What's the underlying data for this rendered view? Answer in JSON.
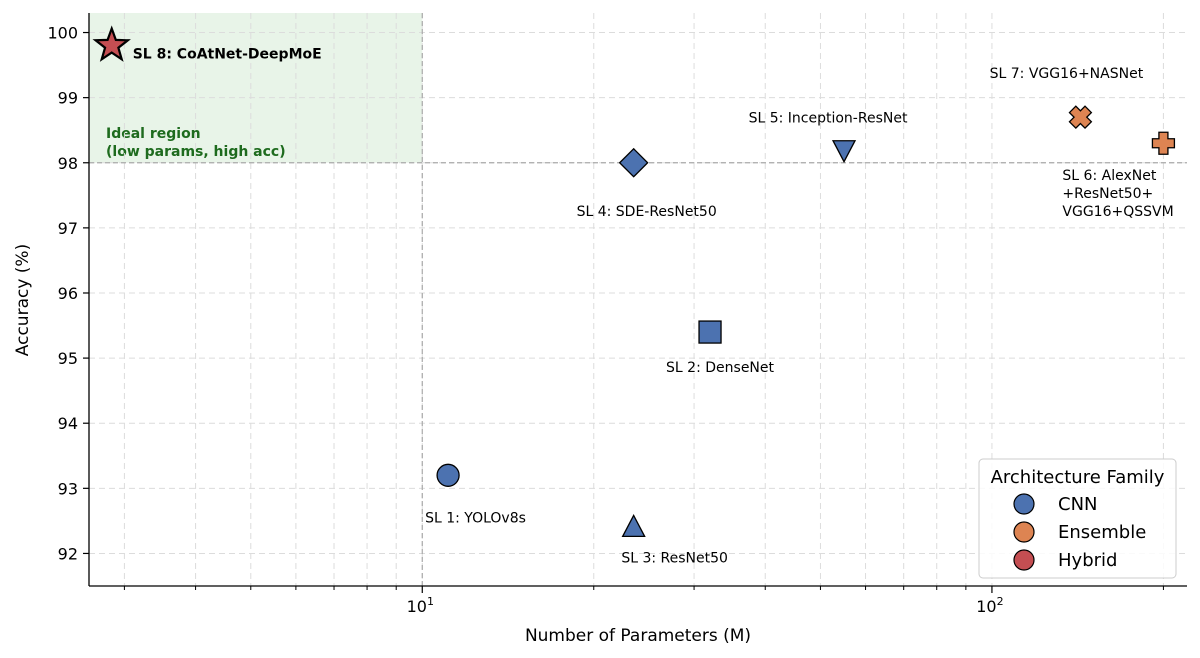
{
  "chart_data": {
    "type": "scatter",
    "title": "",
    "xlabel": "Number of Parameters (M)",
    "ylabel": "Accuracy (%)",
    "xscale": "log",
    "xlim": [
      2.6,
      220
    ],
    "ylim": [
      91.5,
      100.3
    ],
    "x_ticks": [
      {
        "value": 10,
        "base": "10",
        "exp": "1"
      },
      {
        "value": 100,
        "base": "10",
        "exp": "2"
      }
    ],
    "y_ticks": [
      92,
      93,
      94,
      95,
      96,
      97,
      98,
      99,
      100
    ],
    "y_tick_labels": [
      "92",
      "93",
      "94",
      "95",
      "96",
      "97",
      "98",
      "99",
      "100"
    ],
    "grid": true,
    "reference_lines": {
      "x": 10,
      "y": 98
    },
    "ideal_region": {
      "x_range": [
        2.6,
        10
      ],
      "y_range": [
        98,
        100.3
      ],
      "color": "#e8f4e8",
      "label_lines": [
        "Ideal region",
        "(low params, high acc)"
      ]
    },
    "family_colors": {
      "CNN": "#4c72b0",
      "Ensemble": "#dd8452",
      "Hybrid": "#c44e52"
    },
    "points": [
      {
        "label_lines": [
          "SL 1: YOLOv8s"
        ],
        "family": "CNN",
        "marker": "circle",
        "x": 11.1,
        "y": 93.2
      },
      {
        "label_lines": [
          "SL 2: DenseNet"
        ],
        "family": "CNN",
        "marker": "square",
        "x": 32.0,
        "y": 95.4
      },
      {
        "label_lines": [
          "SL 3: ResNet50"
        ],
        "family": "CNN",
        "marker": "triangle-up",
        "x": 23.5,
        "y": 92.4
      },
      {
        "label_lines": [
          "SL 4: SDE-ResNet50"
        ],
        "family": "CNN",
        "marker": "diamond",
        "x": 23.5,
        "y": 98.0
      },
      {
        "label_lines": [
          "SL 5: Inception-ResNet"
        ],
        "family": "CNN",
        "marker": "triangle-down",
        "x": 55.0,
        "y": 98.2
      },
      {
        "label_lines": [
          "SL 6: AlexNet",
          "+ResNet50+",
          "VGG16+QSSVM"
        ],
        "family": "Ensemble",
        "marker": "plus",
        "x": 200.0,
        "y": 98.3
      },
      {
        "label_lines": [
          "SL 7: VGG16+NASNet"
        ],
        "family": "Ensemble",
        "marker": "x",
        "x": 143.0,
        "y": 98.7
      },
      {
        "label_lines": [
          "SL 8: CoAtNet-DeepMoE"
        ],
        "family": "Hybrid",
        "marker": "star",
        "x": 2.85,
        "y": 99.8
      }
    ],
    "legend": {
      "title": "Architecture Family",
      "placement": "bottom-right",
      "entries": [
        "CNN",
        "Ensemble",
        "Hybrid"
      ]
    }
  }
}
